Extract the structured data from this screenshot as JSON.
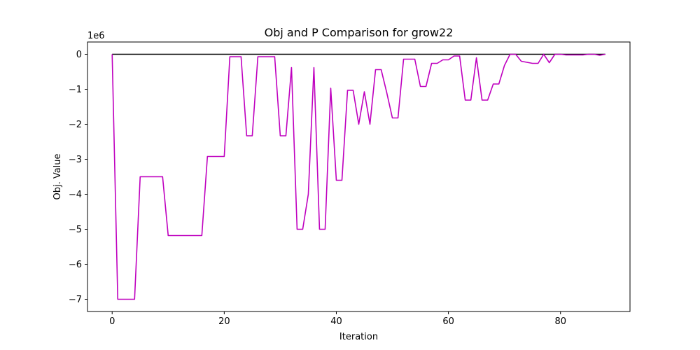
{
  "chart_data": {
    "type": "line",
    "title": "Obj and P Comparison for grow22",
    "xlabel": "Iteration",
    "ylabel": "Obj. Value",
    "y_offset_label": "1e6",
    "xlim": [
      -4.4,
      92.4
    ],
    "ylim": [
      -7.35,
      0.35
    ],
    "grid": false,
    "legend": "none",
    "x_ticks": [
      0,
      20,
      40,
      60,
      80
    ],
    "x_tick_labels": [
      "0",
      "20",
      "40",
      "60",
      "80"
    ],
    "y_ticks": [
      0,
      -1,
      -2,
      -3,
      -4,
      -5,
      -6,
      -7
    ],
    "y_tick_labels": [
      "0",
      "−1",
      "−2",
      "−3",
      "−4",
      "−5",
      "−6",
      "−7"
    ],
    "series": [
      {
        "color": "#000000",
        "x": [
          0,
          88
        ],
        "y": [
          0,
          0
        ]
      },
      {
        "color": "#bf00bf",
        "x": [
          0,
          1,
          2,
          3,
          4,
          5,
          6,
          7,
          8,
          9,
          10,
          11,
          12,
          13,
          14,
          15,
          16,
          17,
          18,
          19,
          20,
          21,
          22,
          23,
          24,
          25,
          26,
          27,
          28,
          29,
          30,
          31,
          32,
          33,
          34,
          35,
          36,
          37,
          38,
          39,
          40,
          41,
          42,
          43,
          44,
          45,
          46,
          47,
          48,
          49,
          50,
          51,
          52,
          53,
          54,
          55,
          56,
          57,
          58,
          59,
          60,
          61,
          62,
          63,
          64,
          65,
          66,
          67,
          68,
          69,
          70,
          71,
          72,
          73,
          74,
          75,
          76,
          77,
          78,
          79,
          80,
          81,
          82,
          83,
          84,
          85,
          86,
          87,
          88
        ],
        "y": [
          0,
          -7.0,
          -7.0,
          -7.0,
          -7.0,
          -3.5,
          -3.5,
          -3.5,
          -3.5,
          -3.5,
          -5.18,
          -5.18,
          -5.18,
          -5.18,
          -5.18,
          -5.18,
          -5.18,
          -2.92,
          -2.92,
          -2.92,
          -2.92,
          -0.07,
          -0.07,
          -0.07,
          -2.33,
          -2.33,
          -0.07,
          -0.07,
          -0.07,
          -0.07,
          -2.33,
          -2.33,
          -0.38,
          -5.0,
          -5.0,
          -4.0,
          -0.38,
          -5.0,
          -5.0,
          -0.97,
          -3.6,
          -3.6,
          -1.03,
          -1.03,
          -2.0,
          -1.07,
          -2.0,
          -0.44,
          -0.44,
          -1.1,
          -1.82,
          -1.82,
          -0.14,
          -0.14,
          -0.14,
          -0.92,
          -0.92,
          -0.26,
          -0.26,
          -0.16,
          -0.16,
          -0.05,
          -0.05,
          -1.31,
          -1.31,
          -0.1,
          -1.31,
          -1.31,
          -0.85,
          -0.85,
          -0.32,
          0,
          0,
          -0.2,
          -0.23,
          -0.26,
          -0.26,
          0,
          -0.24,
          0,
          0,
          -0.02,
          -0.02,
          -0.02,
          -0.02,
          0,
          0,
          -0.03,
          0
        ]
      }
    ]
  }
}
